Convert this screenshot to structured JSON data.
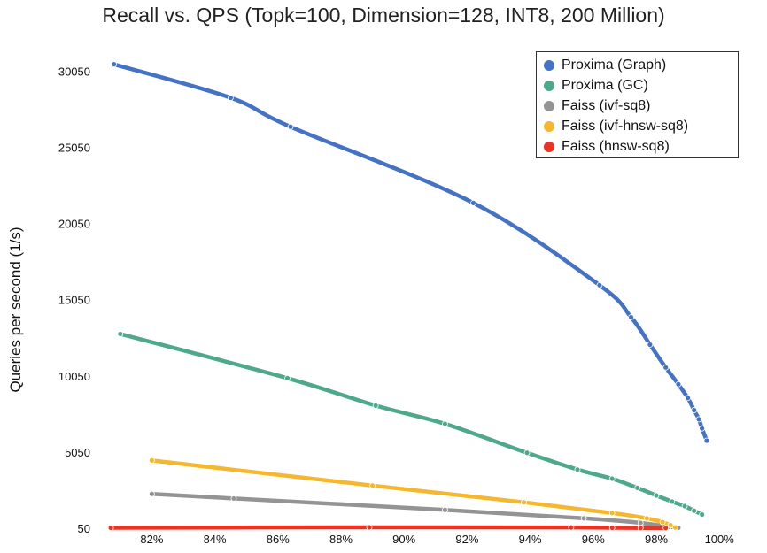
{
  "chart_data": {
    "type": "line",
    "title": "Recall vs. QPS (Topk=100, Dimension=128, INT8, 200 Million)",
    "xlabel": "",
    "ylabel": "Queries per second (1/s)",
    "xlim": [
      80.5,
      100
    ],
    "ylim": [
      50,
      31200
    ],
    "xticks": [
      82,
      84,
      86,
      88,
      90,
      92,
      94,
      96,
      98,
      100
    ],
    "xtick_labels": [
      "82%",
      "84%",
      "86%",
      "88%",
      "90%",
      "92%",
      "94%",
      "96%",
      "98%",
      "100%"
    ],
    "yticks": [
      50,
      5050,
      10050,
      15050,
      20050,
      25050,
      30050
    ],
    "ytick_labels": [
      "50",
      "5050",
      "10050",
      "15050",
      "20050",
      "25050",
      "30050"
    ],
    "grid": false,
    "legend_position": "top-right",
    "series": [
      {
        "name": "Proxima (Graph)",
        "color": "#4472c4",
        "x": [
          80.8,
          84.5,
          86.4,
          92.2,
          96.2,
          97.2,
          97.8,
          98.3,
          98.7,
          99.0,
          99.2,
          99.35,
          99.45,
          99.6
        ],
        "y": [
          30500,
          28300,
          26400,
          21400,
          16000,
          13900,
          12100,
          10600,
          9500,
          8600,
          7800,
          7200,
          6600,
          5800
        ]
      },
      {
        "name": "Proxima (GC)",
        "color": "#4ea98a",
        "x": [
          81.0,
          86.3,
          89.1,
          91.3,
          93.9,
          95.5,
          96.6,
          97.4,
          98.0,
          98.5,
          98.9,
          99.2,
          99.45
        ],
        "y": [
          12800,
          9900,
          8100,
          6900,
          5000,
          3900,
          3300,
          2700,
          2200,
          1800,
          1500,
          1200,
          950
        ]
      },
      {
        "name": "Faiss (ivf-sq8)",
        "color": "#949494",
        "x": [
          82.0,
          84.6,
          91.3,
          95.7,
          97.5,
          98.4,
          98.7
        ],
        "y": [
          2300,
          2000,
          1250,
          700,
          400,
          150,
          80
        ]
      },
      {
        "name": "Faiss (ivf-hnsw-sq8)",
        "color": "#f4b72d",
        "x": [
          82.0,
          89.0,
          93.8,
          96.6,
          97.7,
          98.2,
          98.45,
          98.6
        ],
        "y": [
          4500,
          2850,
          1750,
          1050,
          700,
          450,
          250,
          100
        ]
      },
      {
        "name": "Faiss (hnsw-sq8)",
        "color": "#ea3323",
        "x": [
          80.7,
          88.9,
          95.3,
          96.6,
          97.5,
          98.3
        ],
        "y": [
          80,
          110,
          100,
          80,
          70,
          60
        ]
      }
    ]
  }
}
